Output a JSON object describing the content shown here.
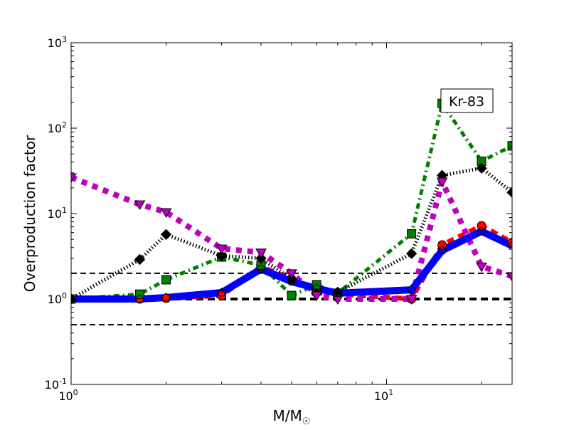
{
  "chart_data": {
    "type": "line",
    "title": "",
    "annotation": "Kr-83",
    "xlabel": "M/M",
    "xlabel_symbol": "☉",
    "ylabel": "Overproduction factor",
    "xscale": "log",
    "yscale": "log",
    "xlim": [
      1,
      25
    ],
    "ylim": [
      0.1,
      1000
    ],
    "x_ticks": [
      {
        "base": "10",
        "exp": "0",
        "value": 1
      },
      {
        "base": "10",
        "exp": "1",
        "value": 10
      }
    ],
    "y_ticks": [
      {
        "base": "10",
        "exp": "-1",
        "value": 0.1
      },
      {
        "base": "10",
        "exp": "0",
        "value": 1
      },
      {
        "base": "10",
        "exp": "1",
        "value": 10
      },
      {
        "base": "10",
        "exp": "2",
        "value": 100
      },
      {
        "base": "10",
        "exp": "3",
        "value": 1000
      }
    ],
    "reference_lines": [
      0.5,
      1,
      2
    ],
    "x": [
      1,
      1.65,
      2,
      3,
      4,
      5,
      6,
      7,
      12,
      15,
      20,
      25
    ],
    "series": [
      {
        "name": "red-circles",
        "color": "#ff0000",
        "marker": "circle",
        "style": "dashed",
        "values": [
          1,
          1,
          1.02,
          1.1,
          2.4,
          1.7,
          1.3,
          1.15,
          1.0,
          4.3,
          7.2,
          4.6
        ]
      },
      {
        "name": "green-squares",
        "color": "#008000",
        "marker": "square",
        "style": "dashdot",
        "values": [
          1,
          1.14,
          1.68,
          3.1,
          2.5,
          1.1,
          1.47,
          1.17,
          5.8,
          195,
          41,
          62
        ]
      },
      {
        "name": "black-diamonds",
        "color": "#000000",
        "marker": "diamond",
        "style": "dotted",
        "values": [
          1,
          2.9,
          5.7,
          3.2,
          3.0,
          1.7,
          1.15,
          1.2,
          3.4,
          28,
          34,
          17.7
        ]
      },
      {
        "name": "magenta-triangles",
        "color": "#bf00bf",
        "marker": "triangle-down",
        "style": "dotted-thick",
        "values": [
          26.6,
          12.8,
          10.4,
          3.9,
          3.5,
          2.0,
          1.1,
          1.0,
          1.0,
          23.7,
          2.4,
          1.85
        ]
      },
      {
        "name": "blue-pentagons",
        "color": "#0000ff",
        "marker": "pentagon",
        "style": "solid",
        "values": [
          1,
          1,
          1.04,
          1.19,
          2.24,
          1.6,
          1.33,
          1.17,
          1.28,
          3.7,
          6.2,
          4.2
        ]
      }
    ]
  }
}
